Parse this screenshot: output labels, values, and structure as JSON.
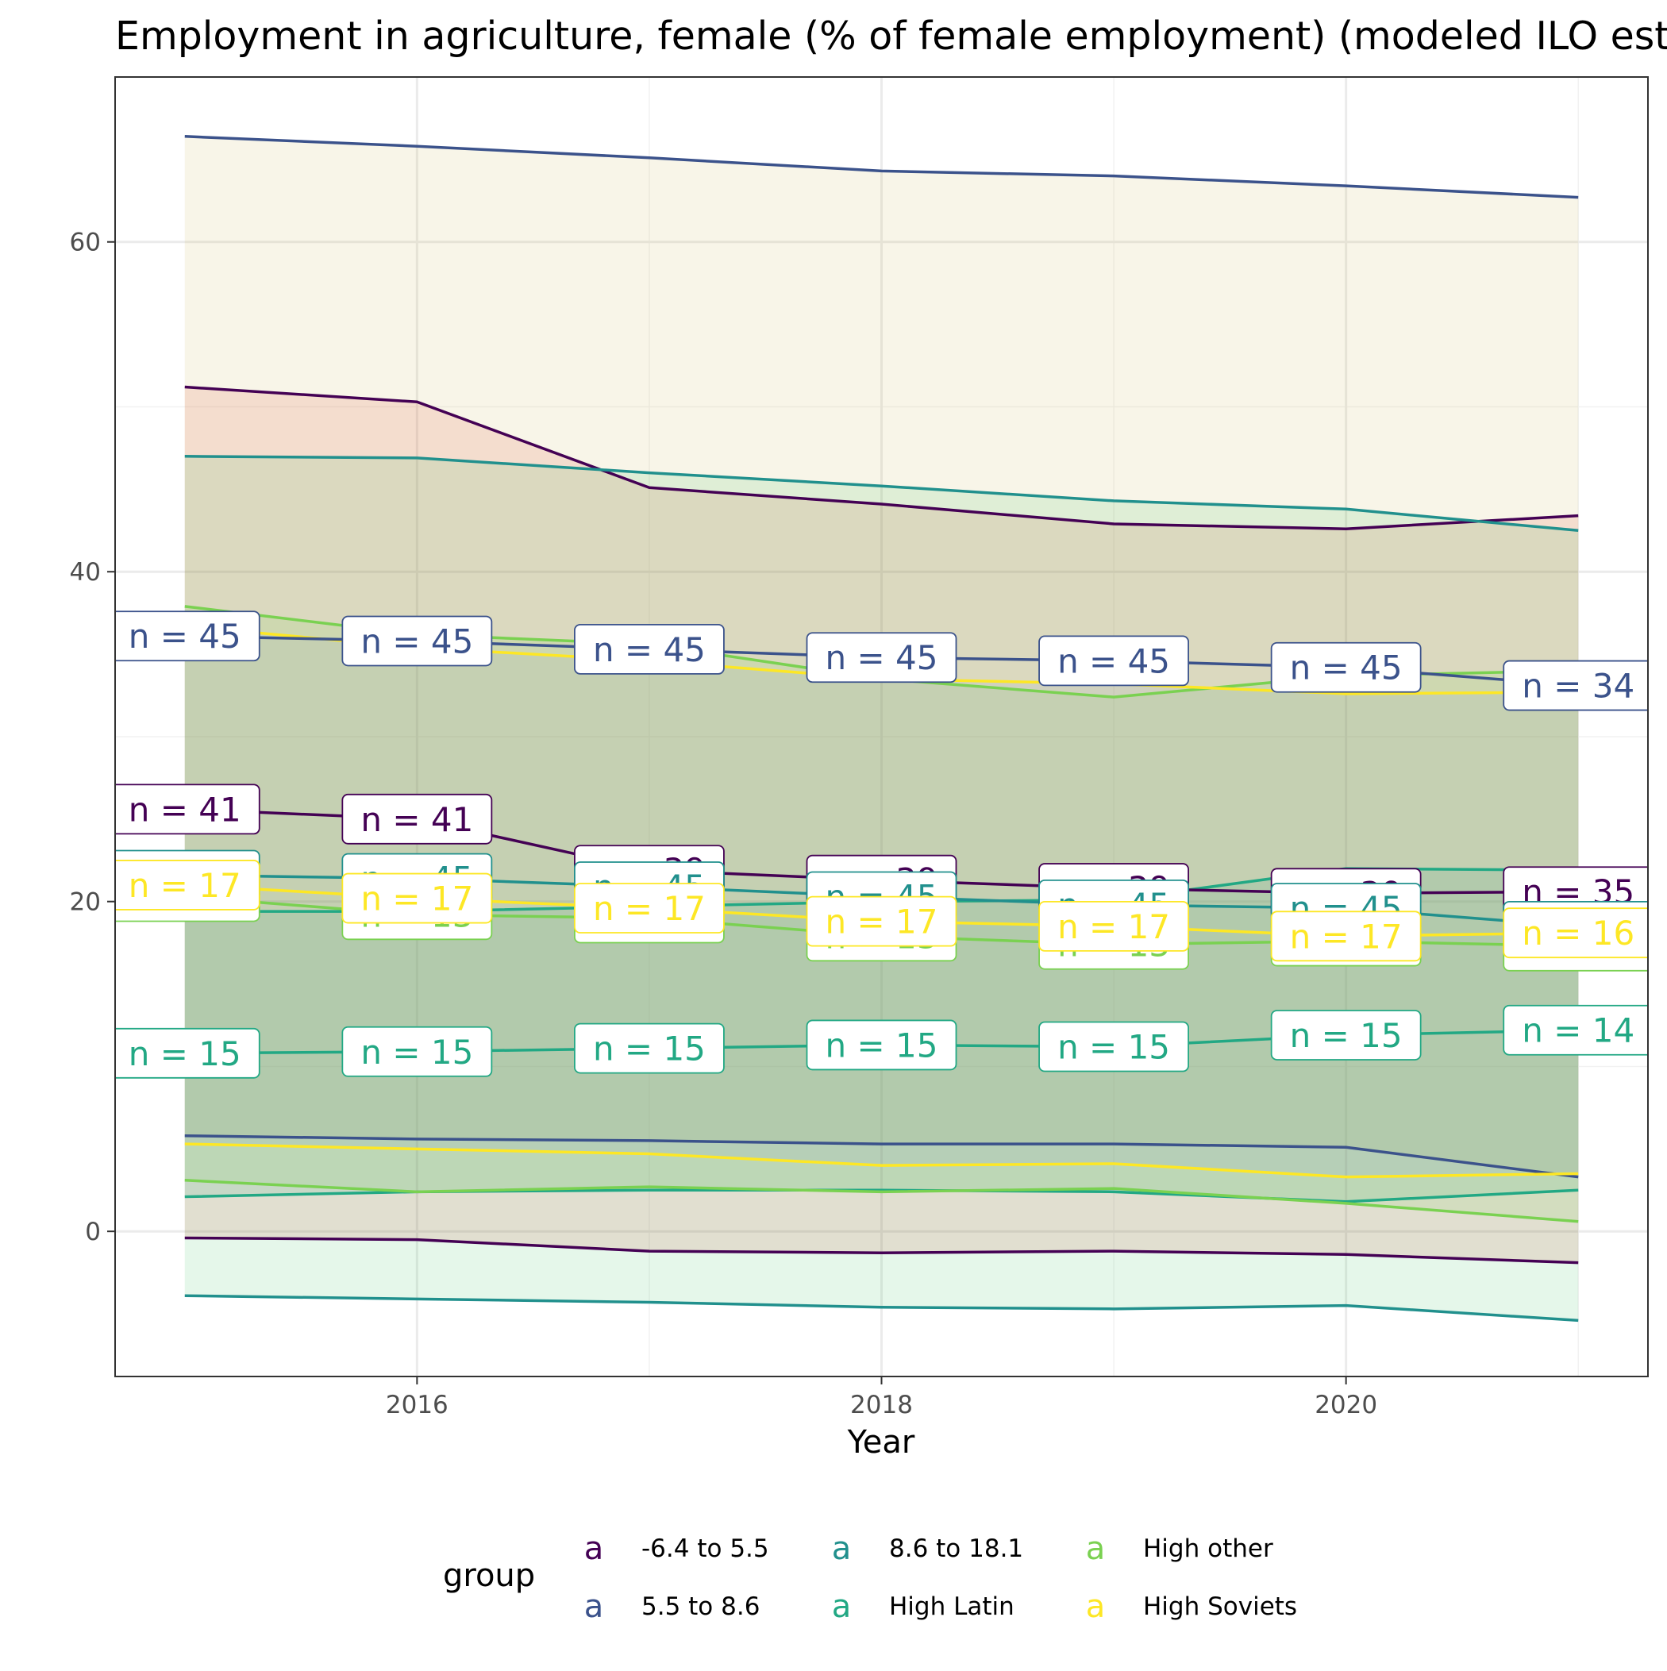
{
  "chart_data": {
    "type": "line",
    "title": "Employment in agriculture, female (% of female employment) (modeled ILO estimate)",
    "xlabel": "Year",
    "ylabel": "",
    "x": [
      2015,
      2016,
      2017,
      2018,
      2019,
      2020,
      2021
    ],
    "xlim": [
      2014.7,
      2021.3
    ],
    "ylim": [
      -8.8,
      70
    ],
    "xticks": [
      2016,
      2018,
      2020
    ],
    "yticks": [
      0,
      20,
      40,
      60
    ],
    "xtick_labels": [
      "2016",
      "2018",
      "2020"
    ],
    "ytick_labels": [
      "0",
      "20",
      "40",
      "60"
    ],
    "grid": true,
    "legend": {
      "title": "group",
      "position": "bottom",
      "key_glyph": "a"
    },
    "series": [
      {
        "name": "-6.4 to 5.5",
        "color": "#440154",
        "mean": [
          25.6,
          25.0,
          21.9,
          21.3,
          20.8,
          20.5,
          20.6
        ],
        "upper": [
          51.2,
          50.3,
          45.1,
          44.1,
          42.9,
          42.6,
          43.4
        ],
        "lower": [
          -0.4,
          -0.5,
          -1.2,
          -1.3,
          -1.2,
          -1.4,
          -1.9
        ],
        "n_labels": [
          "n = 41",
          "n = 41",
          "n = 39",
          "n = 39",
          "n = 39",
          "n = 39",
          "n = 35"
        ],
        "ribbon_fill": "#e0301e"
      },
      {
        "name": "5.5 to 8.6",
        "color": "#3b528b",
        "mean": [
          36.1,
          35.8,
          35.3,
          34.8,
          34.6,
          34.2,
          33.1
        ],
        "upper": [
          66.4,
          65.8,
          65.1,
          64.3,
          64.0,
          63.4,
          62.7
        ],
        "lower": [
          5.8,
          5.6,
          5.5,
          5.3,
          5.3,
          5.1,
          3.3
        ],
        "n_labels": [
          "n = 45",
          "n = 45",
          "n = 45",
          "n = 45",
          "n = 45",
          "n = 45",
          "n = 34"
        ],
        "ribbon_fill": "#c8b450"
      },
      {
        "name": "8.6 to 18.1",
        "color": "#21908d",
        "mean": [
          21.6,
          21.4,
          20.9,
          20.3,
          19.8,
          19.6,
          18.5
        ],
        "upper": [
          47.0,
          46.9,
          46.0,
          45.2,
          44.3,
          43.8,
          42.5
        ],
        "lower": [
          -3.9,
          -4.1,
          -4.3,
          -4.6,
          -4.7,
          -4.5,
          -5.4
        ],
        "n_labels": [
          "n = 45",
          "n = 45",
          "n = 45",
          "n = 45",
          "n = 45",
          "n = 45",
          "n = 34"
        ],
        "ribbon_fill": "#33c45a"
      },
      {
        "name": "High Latin",
        "color": "#22a884",
        "mean": [
          10.8,
          10.9,
          11.1,
          11.3,
          11.2,
          11.9,
          12.2
        ],
        "upper": [
          19.4,
          19.4,
          19.7,
          20.0,
          20.1,
          22.0,
          21.9
        ],
        "lower": [
          2.1,
          2.4,
          2.5,
          2.5,
          2.4,
          1.8,
          2.5
        ],
        "n_labels": [
          "n = 15",
          "n = 15",
          "n = 15",
          "n = 15",
          "n = 15",
          "n = 15",
          "n = 14"
        ],
        "ribbon_fill": "#22a884"
      },
      {
        "name": "High other",
        "color": "#7ad151",
        "mean": [
          20.3,
          19.2,
          19.0,
          17.9,
          17.4,
          17.6,
          17.3
        ],
        "upper": [
          37.9,
          36.2,
          35.6,
          33.5,
          32.4,
          33.7,
          34.0
        ],
        "lower": [
          3.1,
          2.4,
          2.7,
          2.4,
          2.6,
          1.7,
          0.6
        ],
        "n_labels": [
          "n = 13",
          "n = 13",
          "n = 13",
          "n = 13",
          "n = 13",
          "n = 13",
          "n = 12"
        ],
        "ribbon_fill": "#7ad151"
      },
      {
        "name": "High Soviets",
        "color": "#fde725",
        "mean": [
          21.0,
          20.2,
          19.6,
          18.8,
          18.5,
          17.9,
          18.1
        ],
        "upper": [
          36.7,
          35.4,
          34.6,
          33.5,
          33.2,
          32.6,
          32.7
        ],
        "lower": [
          5.3,
          5.0,
          4.7,
          4.0,
          4.1,
          3.3,
          3.5
        ],
        "n_labels": [
          "n = 17",
          "n = 17",
          "n = 17",
          "n = 17",
          "n = 17",
          "n = 17",
          "n = 16"
        ],
        "ribbon_fill": "#8c9ec0"
      }
    ]
  }
}
